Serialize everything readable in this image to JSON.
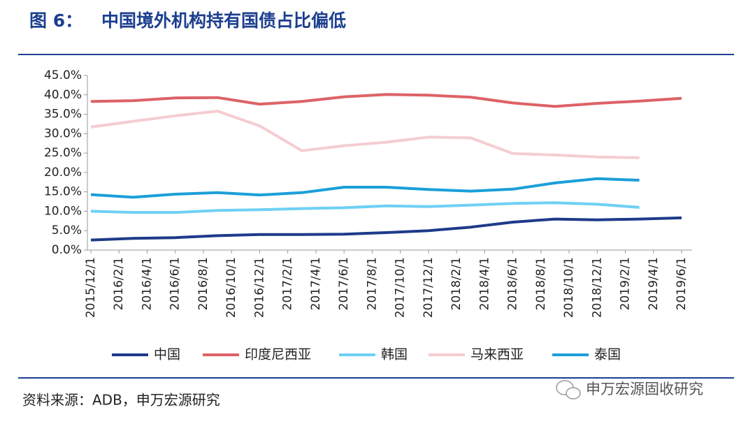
{
  "chart_data": {
    "type": "line",
    "figure_label": "图 6：",
    "title": "中国境外机构持有国债占比偏低",
    "x": [
      "2015/12/1",
      "2016/3/1",
      "2016/6/1",
      "2016/9/1",
      "2016/12/1",
      "2017/3/1",
      "2017/6/1",
      "2017/9/1",
      "2017/12/1",
      "2018/3/1",
      "2018/6/1",
      "2018/9/1",
      "2018/12/1",
      "2019/3/1",
      "2019/6/1"
    ],
    "series": [
      {
        "name": "中国",
        "color": "#1f3a8a",
        "values": [
          2.6,
          3.0,
          3.2,
          3.7,
          4.0,
          4.0,
          4.1,
          4.5,
          5.0,
          5.9,
          7.2,
          8.0,
          7.8,
          8.0,
          8.3
        ]
      },
      {
        "name": "印度尼西亚",
        "color": "#dd6266",
        "values": [
          38.3,
          38.5,
          39.2,
          39.3,
          37.6,
          38.3,
          39.5,
          40.1,
          39.9,
          39.4,
          37.9,
          37.0,
          37.8,
          38.4,
          39.1
        ]
      },
      {
        "name": "韩国",
        "color": "#6fd0f5",
        "values": [
          10.0,
          9.7,
          9.7,
          10.2,
          10.4,
          10.7,
          10.9,
          11.4,
          11.2,
          11.6,
          12.0,
          12.2,
          11.8,
          11.0,
          null
        ]
      },
      {
        "name": "马来西亚",
        "color": "#f4cdd1",
        "values": [
          31.7,
          33.2,
          34.6,
          35.8,
          32.0,
          25.6,
          26.9,
          27.8,
          29.1,
          28.9,
          24.9,
          24.5,
          24.0,
          23.8,
          null
        ]
      },
      {
        "name": "泰国",
        "color": "#1b9fd8",
        "values": [
          14.3,
          13.6,
          14.4,
          14.8,
          14.2,
          14.8,
          16.2,
          16.2,
          15.6,
          15.2,
          15.7,
          17.3,
          18.4,
          18.0,
          null
        ]
      }
    ],
    "xlim": [
      "2015/12/1",
      "2019/6/1"
    ],
    "xticks": [
      "2015/12/1",
      "2016/2/1",
      "2016/4/1",
      "2016/6/1",
      "2016/8/1",
      "2016/10/1",
      "2016/12/1",
      "2017/2/1",
      "2017/4/1",
      "2017/6/1",
      "2017/8/1",
      "2017/10/1",
      "2017/12/1",
      "2018/2/1",
      "2018/4/1",
      "2018/6/1",
      "2018/8/1",
      "2018/10/1",
      "2018/12/1",
      "2019/2/1",
      "2019/4/1",
      "2019/6/1"
    ],
    "ylim": [
      0,
      45
    ],
    "yticks": [
      {
        "value": 0,
        "label": "0.0%"
      },
      {
        "value": 5,
        "label": "5.0%"
      },
      {
        "value": 10,
        "label": "10.0%"
      },
      {
        "value": 15,
        "label": "15.0%"
      },
      {
        "value": 20,
        "label": "20.0%"
      },
      {
        "value": 25,
        "label": "25.0%"
      },
      {
        "value": 30,
        "label": "30.0%"
      },
      {
        "value": 35,
        "label": "35.0%"
      },
      {
        "value": 40,
        "label": "40.0%"
      },
      {
        "value": 45,
        "label": "45.0%"
      }
    ],
    "legend": "bottom",
    "source": "资料来源：ADB，申万宏源研究",
    "watermark": "申万宏源固收研究"
  }
}
